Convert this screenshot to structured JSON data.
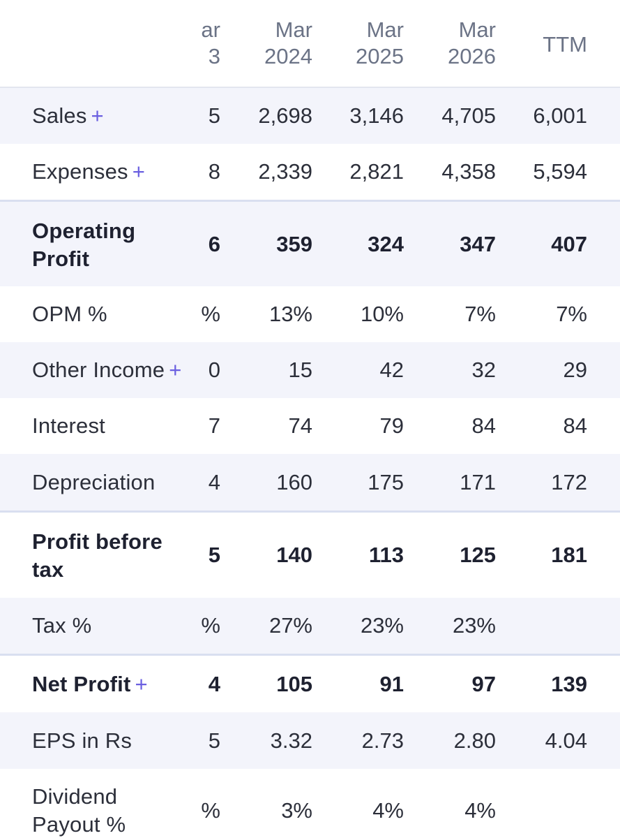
{
  "header": {
    "col0": [
      "ar",
      "3"
    ],
    "col1": [
      "Mar",
      "2024"
    ],
    "col2": [
      "Mar",
      "2025"
    ],
    "col3": [
      "Mar",
      "2026"
    ],
    "col4": "TTM"
  },
  "rows": [
    {
      "label": "Sales",
      "plus": "+",
      "values": [
        "5",
        "2,698",
        "3,146",
        "4,705",
        "6,001"
      ]
    },
    {
      "label": "Expenses",
      "plus": "+",
      "values": [
        "8",
        "2,339",
        "2,821",
        "4,358",
        "5,594"
      ]
    },
    {
      "label_lines": [
        "Operating",
        "Profit"
      ],
      "values": [
        "6",
        "359",
        "324",
        "347",
        "407"
      ]
    },
    {
      "label": "OPM %",
      "values": [
        "%",
        "13%",
        "10%",
        "7%",
        "7%"
      ]
    },
    {
      "label": "Other Income",
      "plus": "+",
      "values": [
        "0",
        "15",
        "42",
        "32",
        "29"
      ]
    },
    {
      "label": "Interest",
      "values": [
        "7",
        "74",
        "79",
        "84",
        "84"
      ]
    },
    {
      "label": "Depreciation",
      "values": [
        "4",
        "160",
        "175",
        "171",
        "172"
      ]
    },
    {
      "label_lines": [
        "Profit before",
        "tax"
      ],
      "values": [
        "5",
        "140",
        "113",
        "125",
        "181"
      ]
    },
    {
      "label": "Tax %",
      "values": [
        "%",
        "27%",
        "23%",
        "23%",
        ""
      ]
    },
    {
      "label": "Net Profit",
      "plus": "+",
      "values": [
        "4",
        "105",
        "91",
        "97",
        "139"
      ]
    },
    {
      "label": "EPS in Rs",
      "values": [
        "5",
        "3.32",
        "2.73",
        "2.80",
        "4.04"
      ]
    },
    {
      "label_lines": [
        "Dividend",
        "Payout %"
      ],
      "values": [
        "%",
        "3%",
        "4%",
        "4%",
        ""
      ]
    }
  ],
  "colors": {
    "shaded_row": "#f3f4fb",
    "separator": "#d9dff0",
    "plus_accent": "#6a5fe0",
    "header_text": "#6b7386"
  }
}
